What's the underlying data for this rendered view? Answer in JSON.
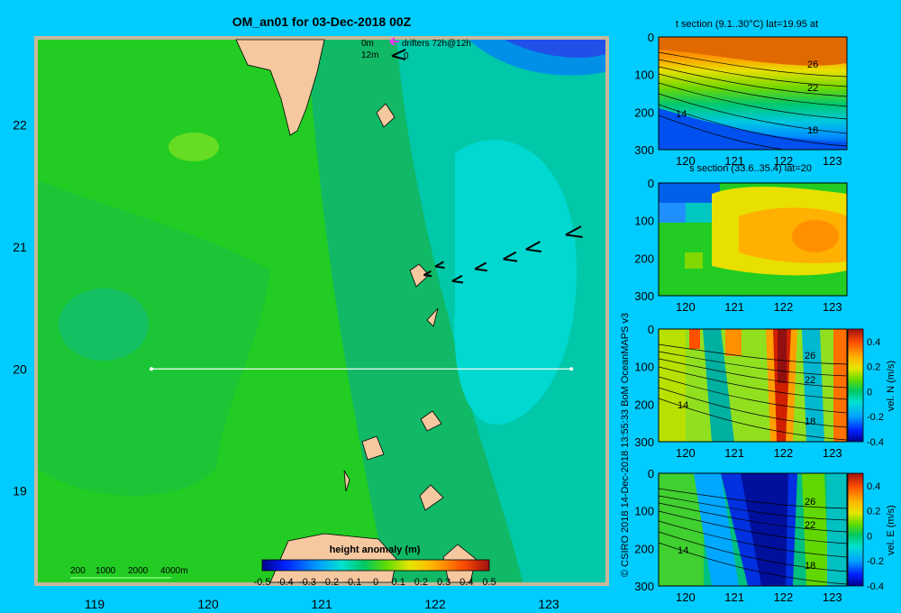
{
  "colors": {
    "background": "#00ccff",
    "land": "#f5c8a0",
    "map_frame": "#c8b89a",
    "section_line": "#ffffff",
    "drifter_track": "#ff33ff",
    "drifter_vector": "#000000"
  },
  "chart_data": [
    {
      "id": "map",
      "type": "heatmap",
      "title": "OM_an01 for 03-Dec-2018 00Z",
      "xlim": [
        118.5,
        123.5
      ],
      "ylim": [
        18.25,
        22.7
      ],
      "x_ticks": [
        119,
        120,
        121,
        122,
        123
      ],
      "y_ticks": [
        19,
        20,
        21,
        22
      ],
      "colorbar": {
        "label": "height anomaly (m)",
        "range": [
          -0.5,
          0.5
        ],
        "ticks": [
          "-0.5",
          "-0.4",
          "-0.3",
          "-0.2",
          "-0.1",
          "0",
          "0.1",
          "0.2",
          "0.3",
          "0.4",
          "0.5"
        ]
      },
      "depth_legend": [
        "200",
        "1000",
        "2000",
        "4000m"
      ],
      "drifter_legend": {
        "depth_labels": [
          "0m",
          "12m"
        ],
        "track_label": "drifters 72h@12h",
        "vector_label": "0"
      },
      "section_line": {
        "lat": 20,
        "lon_from": 119.5,
        "lon_to": 123.2
      },
      "drifter_vectors": [
        {
          "lon": 121.9,
          "lat": 20.77
        },
        {
          "lon": 122.0,
          "lat": 20.84
        },
        {
          "lon": 122.15,
          "lat": 20.72
        },
        {
          "lon": 122.35,
          "lat": 20.82
        },
        {
          "lon": 122.6,
          "lat": 20.9
        },
        {
          "lon": 122.8,
          "lat": 20.98
        },
        {
          "lon": 123.15,
          "lat": 21.1
        }
      ]
    },
    {
      "id": "t-section",
      "type": "heatmap",
      "title": "t section (9.1..30°C) lat=19.95 at",
      "xlim": [
        119.45,
        123.3
      ],
      "ylim": [
        300,
        0
      ],
      "x_ticks": [
        120,
        121,
        122,
        123
      ],
      "y_ticks": [
        0,
        100,
        200,
        300
      ],
      "contour_labels": [
        "26",
        "22",
        "14",
        "18"
      ]
    },
    {
      "id": "s-section",
      "type": "heatmap",
      "title": "s section (33.6..35.4) lat=20",
      "xlim": [
        119.45,
        123.3
      ],
      "ylim": [
        300,
        0
      ],
      "x_ticks": [
        120,
        121,
        122,
        123
      ],
      "y_ticks": [
        0,
        100,
        200,
        300
      ]
    },
    {
      "id": "v-section",
      "type": "heatmap",
      "ylabel": "vel. N (m/s)",
      "xlim": [
        119.45,
        123.3
      ],
      "ylim": [
        300,
        0
      ],
      "x_ticks": [
        120,
        121,
        122,
        123
      ],
      "y_ticks": [
        0,
        100,
        200,
        300
      ],
      "contour_labels": [
        "26",
        "22",
        "14",
        "18"
      ],
      "colorbar": {
        "range": [
          -0.4,
          0.5
        ],
        "ticks": [
          "0.4",
          "0.2",
          "0",
          "-0.2",
          "-0.4"
        ]
      }
    },
    {
      "id": "u-section",
      "type": "heatmap",
      "ylabel": "vel. E (m/s)",
      "xlim": [
        119.45,
        123.3
      ],
      "ylim": [
        300,
        0
      ],
      "x_ticks": [
        120,
        121,
        122,
        123
      ],
      "y_ticks": [
        0,
        100,
        200,
        300
      ],
      "contour_labels": [
        "26",
        "22",
        "14",
        "18"
      ],
      "colorbar": {
        "range": [
          -0.4,
          0.5
        ],
        "ticks": [
          "0.4",
          "0.2",
          "0",
          "-0.2",
          "-0.4"
        ]
      }
    }
  ],
  "credit": "© CSIRO 2018   14-Dec-2018 13:55:33 BoM OceanMAPS v3"
}
